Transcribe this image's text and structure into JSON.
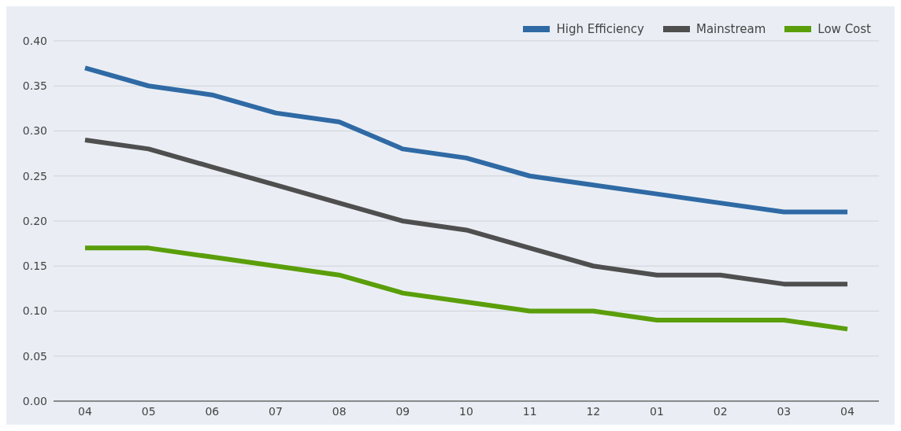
{
  "chart_data": {
    "type": "line",
    "categories": [
      "04",
      "05",
      "06",
      "07",
      "08",
      "09",
      "10",
      "11",
      "12",
      "01",
      "02",
      "03",
      "04"
    ],
    "series": [
      {
        "name": "High Efficiency",
        "color": "#2f6aa5",
        "values": [
          0.37,
          0.35,
          0.34,
          0.32,
          0.31,
          0.28,
          0.27,
          0.25,
          0.24,
          0.23,
          0.22,
          0.21,
          0.21
        ]
      },
      {
        "name": "Mainstream",
        "color": "#4f4f4f",
        "values": [
          0.29,
          0.28,
          0.26,
          0.24,
          0.22,
          0.2,
          0.19,
          0.17,
          0.15,
          0.14,
          0.14,
          0.13,
          0.13
        ]
      },
      {
        "name": "Low Cost",
        "color": "#5a9e0a",
        "values": [
          0.17,
          0.17,
          0.16,
          0.15,
          0.14,
          0.12,
          0.11,
          0.1,
          0.1,
          0.09,
          0.09,
          0.09,
          0.08
        ]
      }
    ],
    "ylim": [
      0,
      0.4
    ],
    "yticks": [
      {
        "value": 0,
        "label": "0.00"
      },
      {
        "value": 0.05,
        "label": "0.05"
      },
      {
        "value": 0.1,
        "label": "0.10"
      },
      {
        "value": 0.15,
        "label": "0.15"
      },
      {
        "value": 0.2,
        "label": "0.20"
      },
      {
        "value": 0.25,
        "label": "0.25"
      },
      {
        "value": 0.3,
        "label": "0.30"
      },
      {
        "value": 0.35,
        "label": "0.35"
      },
      {
        "value": 0.4,
        "label": "0.40"
      }
    ],
    "grid": "y",
    "legend": "top right",
    "marker": "none",
    "line_style": "solid"
  }
}
